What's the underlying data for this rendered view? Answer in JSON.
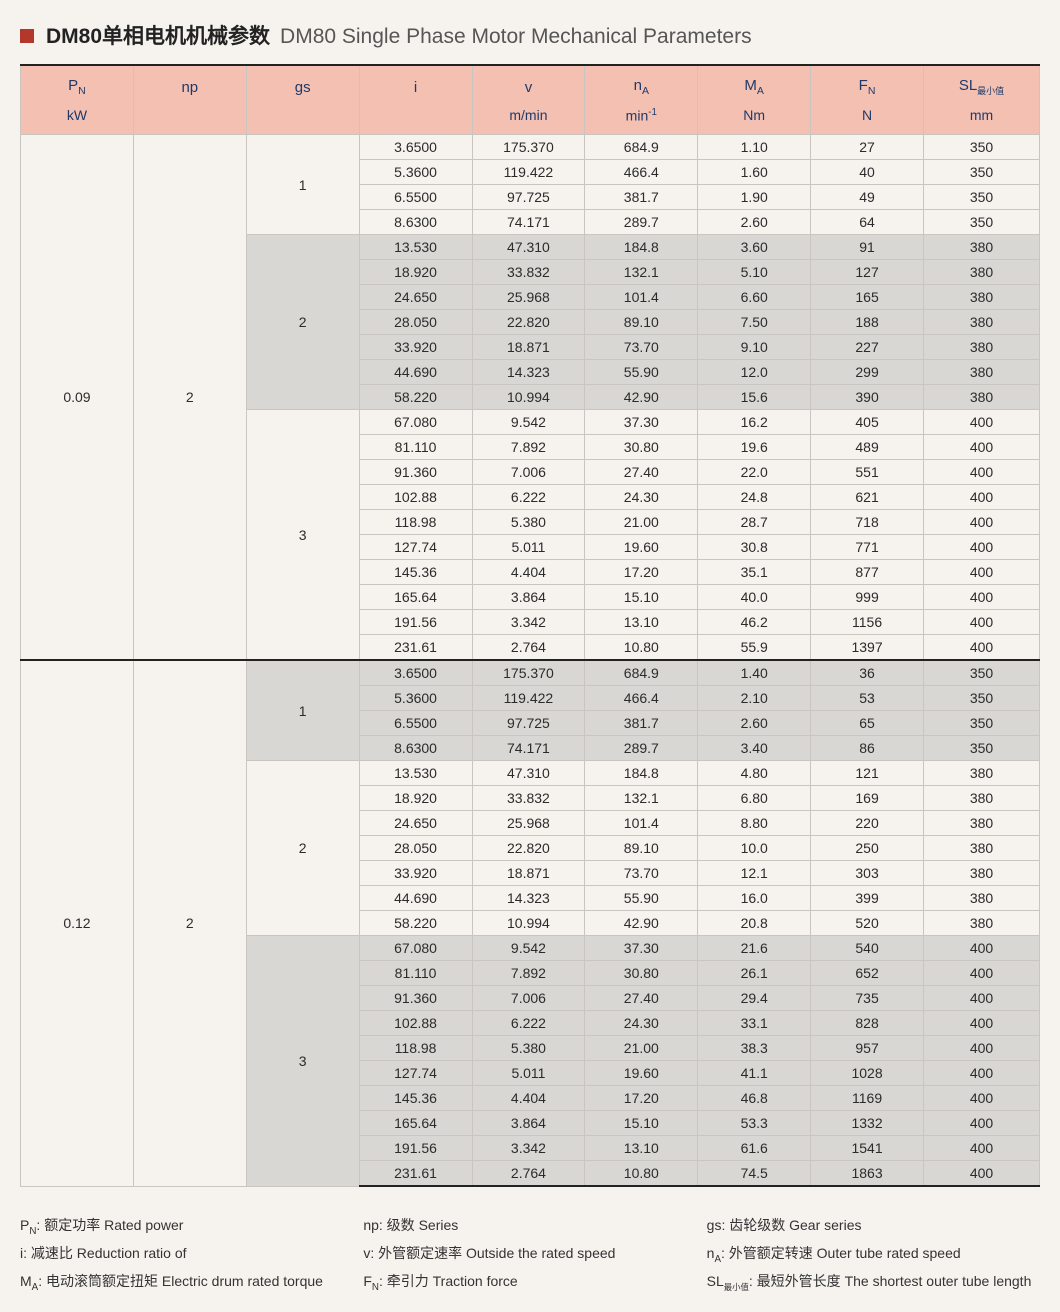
{
  "title": {
    "cn": "DM80单相电机机械参数",
    "en": "DM80 Single Phase Motor Mechanical Parameters"
  },
  "colors": {
    "header_bg": "#f3c0b2",
    "header_text": "#1f3a6a",
    "shade_bg": "#d9d7d3",
    "border": "#c9c6c2",
    "page_bg": "#f6f3ef",
    "accent_square": "#b4372b",
    "body_text": "#2b2b2b"
  },
  "columns": [
    {
      "sym": "P_N",
      "unit": "kW"
    },
    {
      "sym": "np",
      "unit": ""
    },
    {
      "sym": "gs",
      "unit": ""
    },
    {
      "sym": "i",
      "unit": ""
    },
    {
      "sym": "v",
      "unit": "m/min"
    },
    {
      "sym": "n_A",
      "unit": "min^-1"
    },
    {
      "sym": "M_A",
      "unit": "Nm"
    },
    {
      "sym": "F_N",
      "unit": "N"
    },
    {
      "sym": "SL_最小值",
      "unit": "mm"
    }
  ],
  "header": {
    "pn": "P",
    "pn_sub": "N",
    "pn_unit": "kW",
    "np": "np",
    "gs": "gs",
    "i": "i",
    "v": "v",
    "v_unit": "m/min",
    "na": "n",
    "na_sub": "A",
    "na_unit": "min",
    "na_unit_sup": "-1",
    "ma": "M",
    "ma_sub": "A",
    "ma_unit": "Nm",
    "fn": "F",
    "fn_sub": "N",
    "fn_unit": "N",
    "sl": "SL",
    "sl_sub": "最小值",
    "sl_unit": "mm"
  },
  "blocks": [
    {
      "pn": "0.09",
      "np": "2",
      "groups": [
        {
          "gs": "1",
          "shade": false,
          "rows": [
            [
              "3.6500",
              "175.370",
              "684.9",
              "1.10",
              "27",
              "350"
            ],
            [
              "5.3600",
              "119.422",
              "466.4",
              "1.60",
              "40",
              "350"
            ],
            [
              "6.5500",
              "97.725",
              "381.7",
              "1.90",
              "49",
              "350"
            ],
            [
              "8.6300",
              "74.171",
              "289.7",
              "2.60",
              "64",
              "350"
            ]
          ]
        },
        {
          "gs": "2",
          "shade": true,
          "rows": [
            [
              "13.530",
              "47.310",
              "184.8",
              "3.60",
              "91",
              "380"
            ],
            [
              "18.920",
              "33.832",
              "132.1",
              "5.10",
              "127",
              "380"
            ],
            [
              "24.650",
              "25.968",
              "101.4",
              "6.60",
              "165",
              "380"
            ],
            [
              "28.050",
              "22.820",
              "89.10",
              "7.50",
              "188",
              "380"
            ],
            [
              "33.920",
              "18.871",
              "73.70",
              "9.10",
              "227",
              "380"
            ],
            [
              "44.690",
              "14.323",
              "55.90",
              "12.0",
              "299",
              "380"
            ],
            [
              "58.220",
              "10.994",
              "42.90",
              "15.6",
              "390",
              "380"
            ]
          ]
        },
        {
          "gs": "3",
          "shade": false,
          "rows": [
            [
              "67.080",
              "9.542",
              "37.30",
              "16.2",
              "405",
              "400"
            ],
            [
              "81.110",
              "7.892",
              "30.80",
              "19.6",
              "489",
              "400"
            ],
            [
              "91.360",
              "7.006",
              "27.40",
              "22.0",
              "551",
              "400"
            ],
            [
              "102.88",
              "6.222",
              "24.30",
              "24.8",
              "621",
              "400"
            ],
            [
              "118.98",
              "5.380",
              "21.00",
              "28.7",
              "718",
              "400"
            ],
            [
              "127.74",
              "5.011",
              "19.60",
              "30.8",
              "771",
              "400"
            ],
            [
              "145.36",
              "4.404",
              "17.20",
              "35.1",
              "877",
              "400"
            ],
            [
              "165.64",
              "3.864",
              "15.10",
              "40.0",
              "999",
              "400"
            ],
            [
              "191.56",
              "3.342",
              "13.10",
              "46.2",
              "1156",
              "400"
            ],
            [
              "231.61",
              "2.764",
              "10.80",
              "55.9",
              "1397",
              "400"
            ]
          ]
        }
      ]
    },
    {
      "pn": "0.12",
      "np": "2",
      "groups": [
        {
          "gs": "1",
          "shade": true,
          "rows": [
            [
              "3.6500",
              "175.370",
              "684.9",
              "1.40",
              "36",
              "350"
            ],
            [
              "5.3600",
              "119.422",
              "466.4",
              "2.10",
              "53",
              "350"
            ],
            [
              "6.5500",
              "97.725",
              "381.7",
              "2.60",
              "65",
              "350"
            ],
            [
              "8.6300",
              "74.171",
              "289.7",
              "3.40",
              "86",
              "350"
            ]
          ]
        },
        {
          "gs": "2",
          "shade": false,
          "rows": [
            [
              "13.530",
              "47.310",
              "184.8",
              "4.80",
              "121",
              "380"
            ],
            [
              "18.920",
              "33.832",
              "132.1",
              "6.80",
              "169",
              "380"
            ],
            [
              "24.650",
              "25.968",
              "101.4",
              "8.80",
              "220",
              "380"
            ],
            [
              "28.050",
              "22.820",
              "89.10",
              "10.0",
              "250",
              "380"
            ],
            [
              "33.920",
              "18.871",
              "73.70",
              "12.1",
              "303",
              "380"
            ],
            [
              "44.690",
              "14.323",
              "55.90",
              "16.0",
              "399",
              "380"
            ],
            [
              "58.220",
              "10.994",
              "42.90",
              "20.8",
              "520",
              "380"
            ]
          ]
        },
        {
          "gs": "3",
          "shade": true,
          "rows": [
            [
              "67.080",
              "9.542",
              "37.30",
              "21.6",
              "540",
              "400"
            ],
            [
              "81.110",
              "7.892",
              "30.80",
              "26.1",
              "652",
              "400"
            ],
            [
              "91.360",
              "7.006",
              "27.40",
              "29.4",
              "735",
              "400"
            ],
            [
              "102.88",
              "6.222",
              "24.30",
              "33.1",
              "828",
              "400"
            ],
            [
              "118.98",
              "5.380",
              "21.00",
              "38.3",
              "957",
              "400"
            ],
            [
              "127.74",
              "5.011",
              "19.60",
              "41.1",
              "1028",
              "400"
            ],
            [
              "145.36",
              "4.404",
              "17.20",
              "46.8",
              "1169",
              "400"
            ],
            [
              "165.64",
              "3.864",
              "15.10",
              "53.3",
              "1332",
              "400"
            ],
            [
              "191.56",
              "3.342",
              "13.10",
              "61.6",
              "1541",
              "400"
            ],
            [
              "231.61",
              "2.764",
              "10.80",
              "74.5",
              "1863",
              "400"
            ]
          ]
        }
      ]
    }
  ],
  "footer": [
    {
      "sym": "P_N",
      "cn": "额定功率",
      "en": "Rated power"
    },
    {
      "sym": "np",
      "cn": "级数",
      "en": "Series"
    },
    {
      "sym": "gs",
      "cn": "齿轮级数",
      "en": "Gear series"
    },
    {
      "sym": "i",
      "cn": "减速比",
      "en": "Reduction ratio of"
    },
    {
      "sym": "v",
      "cn": "外管额定速率",
      "en": "Outside the rated speed"
    },
    {
      "sym": "n_A",
      "cn": "外管额定转速",
      "en": "Outer tube rated speed"
    },
    {
      "sym": "M_A",
      "cn": "电动滚筒额定扭矩",
      "en": "Electric drum rated torque"
    },
    {
      "sym": "F_N",
      "cn": "牵引力",
      "en": "Traction force"
    },
    {
      "sym": "SL_最小值",
      "cn": "最短外管长度",
      "en": "The shortest outer tube length"
    }
  ],
  "footer_text": {
    "f0": "P",
    "f0s": "N",
    "f0r": ": 额定功率 Rated power",
    "f1": "np",
    "f1s": "",
    "f1r": ": 级数 Series",
    "f2": "gs",
    "f2s": "",
    "f2r": ": 齿轮级数 Gear series",
    "f3": "i",
    "f3s": "",
    "f3r": ": 减速比 Reduction ratio of",
    "f4": "v",
    "f4s": "",
    "f4r": ": 外管额定速率 Outside the rated speed",
    "f5": "n",
    "f5s": "A",
    "f5r": ": 外管额定转速 Outer tube rated speed",
    "f6": "M",
    "f6s": "A",
    "f6r": ": 电动滚筒额定扭矩 Electric drum rated torque",
    "f7": "F",
    "f7s": "N",
    "f7r": ": 牵引力 Traction force",
    "f8": "SL",
    "f8s": "最小值",
    "f8r": ": 最短外管长度 The shortest outer tube length"
  }
}
